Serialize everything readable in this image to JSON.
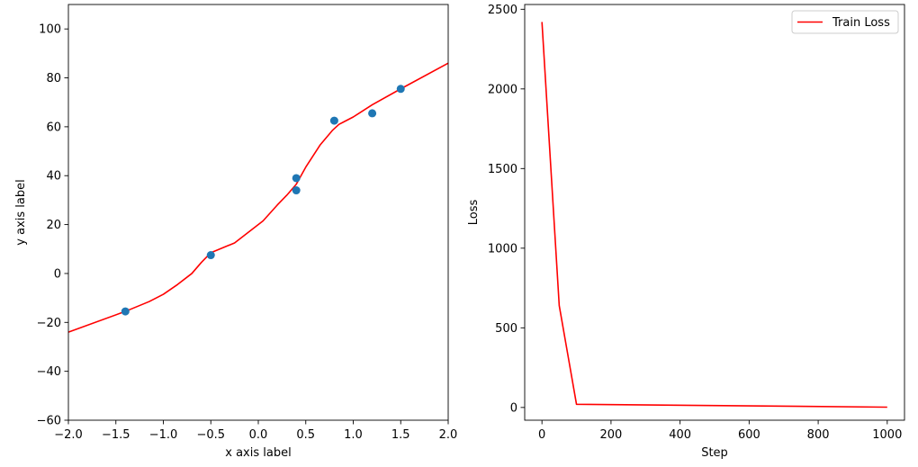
{
  "chart_data": [
    {
      "type": "scatter",
      "xlabel": "x axis label",
      "ylabel": "y axis label",
      "xlim": [
        -2.0,
        2.0
      ],
      "ylim": [
        -60,
        110
      ],
      "xticks": [
        -2.0,
        -1.5,
        -1.0,
        -0.5,
        0.0,
        0.5,
        1.0,
        1.5,
        2.0
      ],
      "xtick_labels": [
        "−2.0",
        "−1.5",
        "−1.0",
        "−0.5",
        "0.0",
        "0.5",
        "1.0",
        "1.5",
        "2.0"
      ],
      "yticks": [
        -60,
        -40,
        -20,
        0,
        20,
        40,
        60,
        80,
        100
      ],
      "ytick_labels": [
        "−60",
        "−40",
        "−20",
        "0",
        "20",
        "40",
        "60",
        "80",
        "100"
      ],
      "grid": false,
      "series": [
        {
          "kind": "scatter",
          "color": "#1f77b4",
          "points": [
            [
              -1.4,
              -15.5
            ],
            [
              -0.5,
              7.5
            ],
            [
              0.4,
              39.0
            ],
            [
              0.4,
              34.0
            ],
            [
              0.8,
              62.5
            ],
            [
              1.2,
              65.5
            ],
            [
              1.5,
              75.5
            ]
          ]
        },
        {
          "kind": "line",
          "color": "#ff0000",
          "points": [
            [
              -2.0,
              -24
            ],
            [
              -1.4,
              -15.5
            ],
            [
              -1.15,
              -11.5
            ],
            [
              -1.0,
              -8.5
            ],
            [
              -0.85,
              -4.5
            ],
            [
              -0.7,
              0.0
            ],
            [
              -0.6,
              4.5
            ],
            [
              -0.5,
              8.5
            ],
            [
              -0.25,
              12.5
            ],
            [
              -0.1,
              17.0
            ],
            [
              0.05,
              21.5
            ],
            [
              0.2,
              28.0
            ],
            [
              0.3,
              32.0
            ],
            [
              0.4,
              36.5
            ],
            [
              0.5,
              43.5
            ],
            [
              0.65,
              52.5
            ],
            [
              0.78,
              58.5
            ],
            [
              0.85,
              61.0
            ],
            [
              1.0,
              64.0
            ],
            [
              1.2,
              69.0
            ],
            [
              1.5,
              75.5
            ],
            [
              2.0,
              86.0
            ]
          ]
        }
      ]
    },
    {
      "type": "line",
      "xlabel": "Step",
      "ylabel": "Loss",
      "xlim": [
        -50,
        1050
      ],
      "ylim": [
        -80,
        2530
      ],
      "xticks": [
        0,
        200,
        400,
        600,
        800,
        1000
      ],
      "xtick_labels": [
        "0",
        "200",
        "400",
        "600",
        "800",
        "1000"
      ],
      "yticks": [
        0,
        500,
        1000,
        1500,
        2000,
        2500
      ],
      "ytick_labels": [
        "0",
        "500",
        "1000",
        "1500",
        "2000",
        "2500"
      ],
      "grid": false,
      "legend_position": "top-right",
      "series": [
        {
          "name": "Train Loss",
          "color": "#ff0000",
          "x": [
            0,
            50,
            100,
            1000
          ],
          "y": [
            2420,
            640,
            20,
            2
          ]
        }
      ]
    }
  ]
}
